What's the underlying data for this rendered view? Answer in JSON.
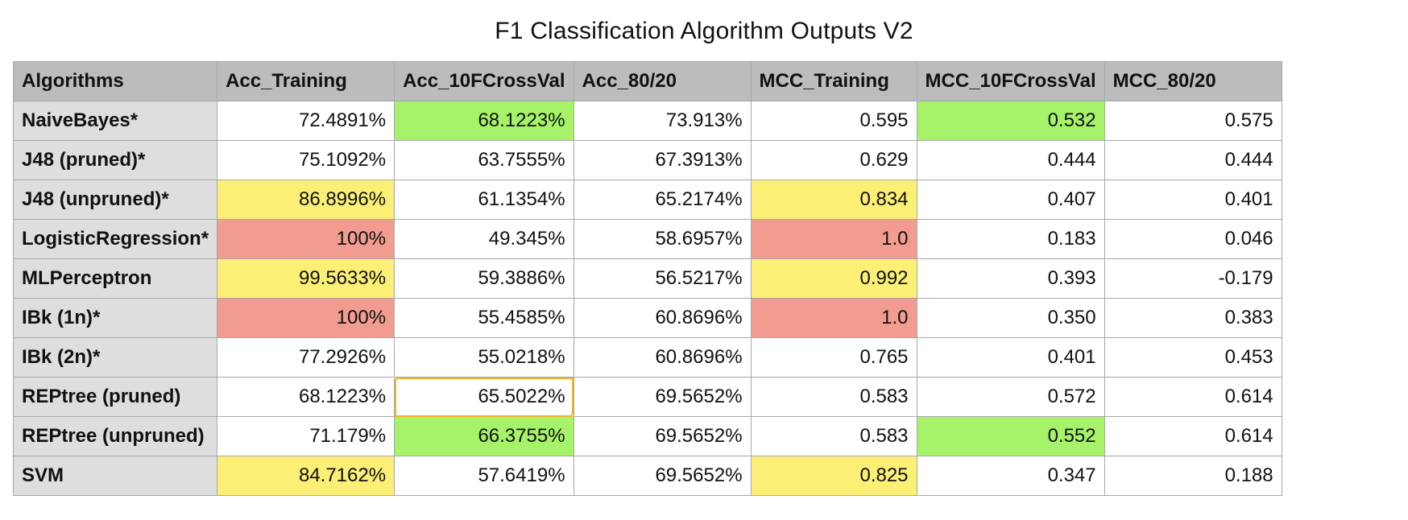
{
  "title": "F1 Classification Algorithm Outputs V2",
  "colors": {
    "header_bg": "#bcbcbc",
    "row_header_bg": "#dedede",
    "green": "#a6f36a",
    "yellow": "#fbef76",
    "red": "#f29b91",
    "selection": "#f0b429"
  },
  "table": {
    "columns": [
      "Algorithms",
      "Acc_Training",
      "Acc_10FCrossVal",
      "Acc_80/20",
      "MCC_Training",
      "MCC_10FCrossVal",
      "MCC_80/20"
    ],
    "rows": [
      {
        "name": "NaiveBayes*",
        "cells": [
          "72.4891%",
          "68.1223%",
          "73.913%",
          "0.595",
          "0.532",
          "0.575"
        ],
        "highlights": [
          "",
          "green",
          "",
          "",
          "green",
          ""
        ]
      },
      {
        "name": "J48 (pruned)*",
        "cells": [
          "75.1092%",
          "63.7555%",
          "67.3913%",
          "0.629",
          "0.444",
          "0.444"
        ],
        "highlights": [
          "",
          "",
          "",
          "",
          "",
          ""
        ]
      },
      {
        "name": "J48 (unpruned)*",
        "cells": [
          "86.8996%",
          "61.1354%",
          "65.2174%",
          "0.834",
          "0.407",
          "0.401"
        ],
        "highlights": [
          "yellow",
          "",
          "",
          "yellow",
          "",
          ""
        ]
      },
      {
        "name": "LogisticRegression*",
        "cells": [
          "100%",
          "49.345%",
          "58.6957%",
          "1.0",
          "0.183",
          "0.046"
        ],
        "highlights": [
          "red",
          "",
          "",
          "red",
          "",
          ""
        ]
      },
      {
        "name": "MLPerceptron",
        "cells": [
          "99.5633%",
          "59.3886%",
          "56.5217%",
          "0.992",
          "0.393",
          "-0.179"
        ],
        "highlights": [
          "yellow",
          "",
          "",
          "yellow",
          "",
          ""
        ]
      },
      {
        "name": "IBk (1n)*",
        "cells": [
          "100%",
          "55.4585%",
          "60.8696%",
          "1.0",
          "0.350",
          "0.383"
        ],
        "highlights": [
          "red",
          "",
          "",
          "red",
          "",
          ""
        ]
      },
      {
        "name": "IBk (2n)*",
        "cells": [
          "77.2926%",
          "55.0218%",
          "60.8696%",
          "0.765",
          "0.401",
          "0.453"
        ],
        "highlights": [
          "",
          "",
          "",
          "",
          "",
          ""
        ]
      },
      {
        "name": "REPtree (pruned)",
        "cells": [
          "68.1223%",
          "65.5022%",
          "69.5652%",
          "0.583",
          "0.572",
          "0.614"
        ],
        "highlights": [
          "",
          "selected",
          "",
          "",
          "",
          ""
        ]
      },
      {
        "name": "REPtree (unpruned)",
        "cells": [
          "71.179%",
          "66.3755%",
          "69.5652%",
          "0.583",
          "0.552",
          "0.614"
        ],
        "highlights": [
          "",
          "green",
          "",
          "",
          "green",
          ""
        ]
      },
      {
        "name": "SVM",
        "cells": [
          "84.7162%",
          "57.6419%",
          "69.5652%",
          "0.825",
          "0.347",
          "0.188"
        ],
        "highlights": [
          "yellow",
          "",
          "",
          "yellow",
          "",
          ""
        ]
      }
    ]
  }
}
